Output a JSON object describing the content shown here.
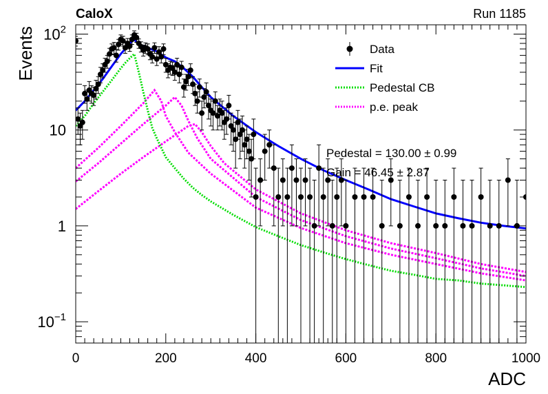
{
  "chart_data": {
    "type": "scatter",
    "experiment": "CaloX",
    "run_label": "Run 1185",
    "xlabel": "ADC",
    "ylabel": "Events",
    "xlim": [
      0,
      1000
    ],
    "ylim": [
      0.06,
      125
    ],
    "yscale": "log",
    "x_ticks": [
      {
        "v": 0,
        "label": "0"
      },
      {
        "v": 200,
        "label": "200"
      },
      {
        "v": 400,
        "label": "400"
      },
      {
        "v": 600,
        "label": "600"
      },
      {
        "v": 800,
        "label": "800"
      },
      {
        "v": 1000,
        "label": "1000"
      }
    ],
    "y_ticks": [
      {
        "v": 0.1,
        "base": "10",
        "exp": "−1"
      },
      {
        "v": 1,
        "base": "1",
        "exp": ""
      },
      {
        "v": 10,
        "base": "10",
        "exp": ""
      },
      {
        "v": 100,
        "base": "10",
        "exp": "2"
      }
    ],
    "legend": {
      "placement": "top-right",
      "entries": [
        {
          "label": "Data",
          "style": "marker",
          "color": "#000000"
        },
        {
          "label": "Fit",
          "style": "solid",
          "color": "#0000ff"
        },
        {
          "label": "Pedestal CB",
          "style": "dotted",
          "color": "#00dd00"
        },
        {
          "label": "p.e. peak",
          "style": "dotted",
          "color": "#ff00ff"
        }
      ]
    },
    "fit_params": [
      "Pedestal = 130.00 ± 0.99",
      "Gain = 46.45 ± 2.87"
    ],
    "data": {
      "x": [
        0,
        5,
        10,
        15,
        20,
        25,
        30,
        35,
        40,
        45,
        50,
        55,
        60,
        65,
        70,
        75,
        80,
        85,
        90,
        95,
        100,
        105,
        110,
        115,
        120,
        125,
        130,
        135,
        140,
        145,
        150,
        155,
        160,
        165,
        170,
        175,
        180,
        185,
        190,
        195,
        200,
        205,
        210,
        215,
        220,
        225,
        230,
        235,
        240,
        245,
        250,
        255,
        260,
        265,
        270,
        275,
        280,
        285,
        290,
        295,
        300,
        305,
        310,
        315,
        320,
        325,
        330,
        335,
        340,
        345,
        350,
        355,
        360,
        365,
        370,
        375,
        380,
        385,
        390,
        395,
        400,
        410,
        420,
        430,
        440,
        450,
        460,
        470,
        480,
        490,
        500,
        510,
        520,
        530,
        540,
        550,
        560,
        570,
        580,
        590,
        600,
        620,
        640,
        660,
        680,
        700,
        720,
        740,
        760,
        780,
        800,
        820,
        840,
        860,
        880,
        900,
        920,
        940,
        960,
        980,
        1000
      ],
      "y": [
        85,
        13,
        11,
        12,
        24,
        21,
        26,
        24,
        23,
        27,
        30,
        38,
        42,
        48,
        52,
        62,
        70,
        72,
        60,
        78,
        88,
        85,
        72,
        80,
        75,
        88,
        98,
        92,
        80,
        74,
        68,
        72,
        70,
        62,
        58,
        72,
        55,
        65,
        58,
        70,
        48,
        42,
        45,
        44,
        40,
        48,
        38,
        45,
        28,
        32,
        36,
        42,
        30,
        24,
        20,
        28,
        15,
        22,
        25,
        18,
        16,
        15,
        20,
        14,
        16,
        15,
        12,
        13,
        18,
        11,
        10,
        8,
        12,
        9,
        10,
        7,
        8,
        6,
        5,
        9,
        2,
        3,
        6,
        7,
        4,
        2,
        3,
        2,
        4,
        3,
        2,
        3,
        2,
        1,
        4,
        2,
        3,
        1,
        2,
        3,
        1,
        2,
        2,
        2,
        1,
        3,
        1,
        2,
        1,
        2,
        1,
        1,
        2,
        1,
        1,
        2,
        1,
        1,
        3,
        1,
        2
      ],
      "yerr_up": [
        10,
        4,
        4,
        4,
        5,
        5,
        6,
        5,
        5,
        6,
        6,
        7,
        7,
        8,
        8,
        9,
        9,
        10,
        9,
        10,
        10,
        10,
        9,
        10,
        9,
        10,
        10,
        10,
        9,
        9,
        9,
        9,
        9,
        8,
        8,
        9,
        8,
        9,
        8,
        9,
        8,
        7,
        7,
        7,
        7,
        8,
        7,
        7,
        6,
        6,
        7,
        7,
        6,
        6,
        5,
        6,
        5,
        5,
        6,
        5,
        5,
        5,
        5,
        4,
        5,
        5,
        4,
        4,
        5,
        4,
        4,
        4,
        4,
        4,
        4,
        3,
        3,
        3,
        3,
        4,
        2,
        2,
        3,
        3,
        3,
        2,
        2,
        2,
        3,
        2,
        2,
        2,
        2,
        2,
        3,
        2,
        2,
        2,
        2,
        2,
        2,
        2,
        2,
        2,
        2,
        2,
        2,
        2,
        2,
        2,
        2,
        2,
        2,
        2,
        2,
        2,
        2,
        2,
        2,
        2,
        2
      ]
    },
    "fit_curve": {
      "x": [
        0,
        20,
        40,
        60,
        80,
        100,
        120,
        130,
        140,
        160,
        180,
        200,
        220,
        240,
        260,
        280,
        300,
        350,
        400,
        450,
        500,
        550,
        600,
        650,
        700,
        750,
        800,
        850,
        900,
        950,
        1000
      ],
      "y": [
        16,
        20,
        26,
        34,
        46,
        62,
        80,
        88,
        78,
        72,
        66,
        57,
        52,
        44,
        36,
        28,
        22,
        14,
        9.5,
        6.8,
        5,
        3.8,
        3,
        2.4,
        1.9,
        1.6,
        1.35,
        1.2,
        1.08,
        1.0,
        0.94
      ]
    },
    "pedestal_curve": {
      "x": [
        0,
        20,
        40,
        60,
        80,
        100,
        110,
        120,
        130,
        140,
        150,
        160,
        170,
        180,
        200,
        220,
        240,
        260,
        280,
        300,
        350,
        400,
        450,
        500,
        550,
        600,
        650,
        700,
        750,
        800,
        850,
        900,
        950,
        1000
      ],
      "y": [
        11,
        14,
        19,
        25,
        33,
        44,
        50,
        56,
        62,
        40,
        25,
        16,
        10.5,
        8.2,
        5.2,
        4.0,
        3.1,
        2.5,
        2.1,
        1.8,
        1.3,
        0.97,
        0.78,
        0.63,
        0.53,
        0.45,
        0.39,
        0.34,
        0.31,
        0.28,
        0.27,
        0.25,
        0.24,
        0.23
      ]
    },
    "pe_peak_curves": [
      {
        "x": [
          0,
          50,
          100,
          150,
          175,
          190,
          200,
          220,
          250,
          300,
          400,
          500,
          600,
          700,
          800,
          900,
          1000
        ],
        "y": [
          4,
          6.5,
          11,
          19,
          26,
          20,
          14,
          9.5,
          5.8,
          3.5,
          1.55,
          0.95,
          0.66,
          0.5,
          0.4,
          0.32,
          0.27
        ]
      },
      {
        "x": [
          0,
          50,
          100,
          150,
          200,
          220,
          235,
          250,
          270,
          300,
          400,
          500,
          600,
          700,
          800,
          900,
          1000
        ],
        "y": [
          2.9,
          4.5,
          7.2,
          11.5,
          18,
          22,
          18,
          12.5,
          8.2,
          5,
          2,
          1.15,
          0.78,
          0.58,
          0.46,
          0.36,
          0.3
        ]
      },
      {
        "x": [
          0,
          50,
          100,
          150,
          200,
          250,
          265,
          280,
          300,
          330,
          400,
          500,
          600,
          700,
          800,
          900,
          1000
        ],
        "y": [
          1.5,
          2.3,
          3.5,
          5.2,
          7.6,
          11,
          11.5,
          9.5,
          6.8,
          4.5,
          2.4,
          1.35,
          0.9,
          0.66,
          0.52,
          0.4,
          0.33
        ]
      }
    ]
  }
}
